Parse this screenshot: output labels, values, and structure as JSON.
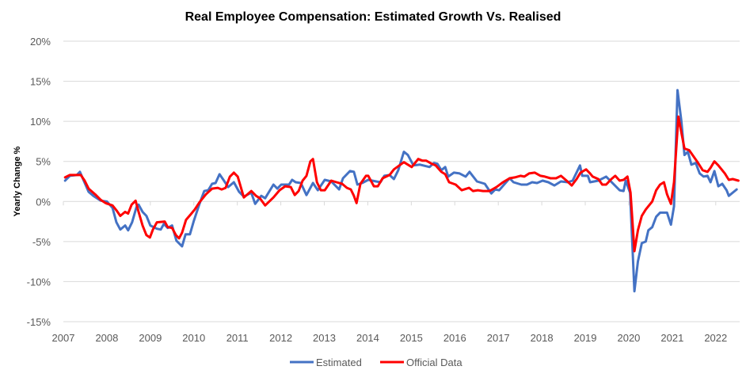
{
  "chart_data": {
    "type": "line",
    "title": "Real Employee Compensation: Estimated Growth Vs. Realised",
    "xlabel": "",
    "ylabel": "Yearly Change %",
    "xlim": [
      2007,
      2022.55
    ],
    "ylim": [
      -15,
      20
    ],
    "yticks": [
      20,
      15,
      10,
      5,
      0,
      -5,
      -10,
      -15
    ],
    "ytick_labels": [
      "20%",
      "15%",
      "10%",
      "5%",
      "0%",
      "-5%",
      "-10%",
      "-15%"
    ],
    "xticks": [
      2007,
      2008,
      2009,
      2010,
      2011,
      2012,
      2013,
      2014,
      2015,
      2016,
      2017,
      2018,
      2019,
      2020,
      2021,
      2022
    ],
    "xtick_labels": [
      "2007",
      "2008",
      "2009",
      "2010",
      "2011",
      "2012",
      "2013",
      "2014",
      "2015",
      "2016",
      "2017",
      "2018",
      "2019",
      "2020",
      "2021",
      "2022"
    ],
    "grid": "horizontal",
    "legend_position": "bottom",
    "series": [
      {
        "name": "Estimated",
        "color": "#4472C4",
        "points": [
          [
            2007.04,
            2.6
          ],
          [
            2007.15,
            3.2
          ],
          [
            2007.31,
            3.3
          ],
          [
            2007.38,
            3.7
          ],
          [
            2007.46,
            2.7
          ],
          [
            2007.58,
            1.2
          ],
          [
            2007.69,
            0.7
          ],
          [
            2007.86,
            0.1
          ],
          [
            2008.0,
            0
          ],
          [
            2008.13,
            -0.8
          ],
          [
            2008.22,
            -2.6
          ],
          [
            2008.31,
            -3.5
          ],
          [
            2008.42,
            -3.0
          ],
          [
            2008.49,
            -3.6
          ],
          [
            2008.58,
            -2.6
          ],
          [
            2008.68,
            -0.7
          ],
          [
            2008.73,
            -0.4
          ],
          [
            2008.82,
            -1.3
          ],
          [
            2008.91,
            -1.8
          ],
          [
            2009.0,
            -3.0
          ],
          [
            2009.15,
            -3.4
          ],
          [
            2009.24,
            -3.5
          ],
          [
            2009.31,
            -2.8
          ],
          [
            2009.4,
            -3.3
          ],
          [
            2009.5,
            -3.0
          ],
          [
            2009.6,
            -4.9
          ],
          [
            2009.73,
            -5.6
          ],
          [
            2009.81,
            -4.1
          ],
          [
            2009.91,
            -4.1
          ],
          [
            2010.0,
            -2.4
          ],
          [
            2010.13,
            -0.3
          ],
          [
            2010.24,
            1.3
          ],
          [
            2010.33,
            1.4
          ],
          [
            2010.42,
            2.2
          ],
          [
            2010.5,
            2.3
          ],
          [
            2010.59,
            3.4
          ],
          [
            2010.68,
            2.7
          ],
          [
            2010.79,
            1.8
          ],
          [
            2010.92,
            2.4
          ],
          [
            2011.04,
            1.2
          ],
          [
            2011.15,
            0.6
          ],
          [
            2011.32,
            1.1
          ],
          [
            2011.41,
            -0.3
          ],
          [
            2011.55,
            0.7
          ],
          [
            2011.64,
            0.4
          ],
          [
            2011.83,
            2.1
          ],
          [
            2011.92,
            1.6
          ],
          [
            2012.01,
            2.1
          ],
          [
            2012.19,
            2.1
          ],
          [
            2012.26,
            2.7
          ],
          [
            2012.34,
            2.4
          ],
          [
            2012.46,
            2.3
          ],
          [
            2012.59,
            0.8
          ],
          [
            2012.74,
            2.3
          ],
          [
            2012.85,
            1.4
          ],
          [
            2013.01,
            2.7
          ],
          [
            2013.16,
            2.5
          ],
          [
            2013.34,
            1.5
          ],
          [
            2013.43,
            2.9
          ],
          [
            2013.59,
            3.8
          ],
          [
            2013.68,
            3.7
          ],
          [
            2013.76,
            2.1
          ],
          [
            2013.87,
            2.3
          ],
          [
            2014.01,
            2.7
          ],
          [
            2014.19,
            2.5
          ],
          [
            2014.29,
            2.4
          ],
          [
            2014.38,
            3.2
          ],
          [
            2014.5,
            3.3
          ],
          [
            2014.6,
            2.8
          ],
          [
            2014.7,
            3.9
          ],
          [
            2014.83,
            6.2
          ],
          [
            2014.92,
            5.8
          ],
          [
            2015.05,
            4.5
          ],
          [
            2015.2,
            4.6
          ],
          [
            2015.42,
            4.3
          ],
          [
            2015.52,
            4.8
          ],
          [
            2015.6,
            4.7
          ],
          [
            2015.69,
            3.9
          ],
          [
            2015.78,
            4.3
          ],
          [
            2015.85,
            3.1
          ],
          [
            2015.98,
            3.6
          ],
          [
            2016.11,
            3.5
          ],
          [
            2016.25,
            3.1
          ],
          [
            2016.34,
            3.7
          ],
          [
            2016.51,
            2.5
          ],
          [
            2016.69,
            2.2
          ],
          [
            2016.84,
            1.0
          ],
          [
            2016.93,
            1.5
          ],
          [
            2017.02,
            1.4
          ],
          [
            2017.15,
            2.2
          ],
          [
            2017.26,
            2.9
          ],
          [
            2017.35,
            2.4
          ],
          [
            2017.53,
            2.1
          ],
          [
            2017.66,
            2.1
          ],
          [
            2017.78,
            2.4
          ],
          [
            2017.89,
            2.3
          ],
          [
            2018.02,
            2.6
          ],
          [
            2018.15,
            2.4
          ],
          [
            2018.29,
            2.0
          ],
          [
            2018.44,
            2.5
          ],
          [
            2018.6,
            2.4
          ],
          [
            2018.71,
            2.6
          ],
          [
            2018.88,
            4.5
          ],
          [
            2018.93,
            3.2
          ],
          [
            2019.06,
            3.2
          ],
          [
            2019.11,
            2.4
          ],
          [
            2019.3,
            2.6
          ],
          [
            2019.48,
            3.1
          ],
          [
            2019.79,
            1.4
          ],
          [
            2019.88,
            1.3
          ],
          [
            2019.93,
            2.6
          ],
          [
            2020.03,
            1.1
          ],
          [
            2020.13,
            -11.2
          ],
          [
            2020.21,
            -7.5
          ],
          [
            2020.3,
            -5.2
          ],
          [
            2020.39,
            -5.0
          ],
          [
            2020.45,
            -3.6
          ],
          [
            2020.54,
            -3.2
          ],
          [
            2020.63,
            -1.9
          ],
          [
            2020.72,
            -1.4
          ],
          [
            2020.88,
            -1.4
          ],
          [
            2020.97,
            -2.9
          ],
          [
            2021.04,
            -0.6
          ],
          [
            2021.12,
            13.9
          ],
          [
            2021.21,
            10.0
          ],
          [
            2021.28,
            5.8
          ],
          [
            2021.36,
            6.2
          ],
          [
            2021.44,
            4.6
          ],
          [
            2021.54,
            4.8
          ],
          [
            2021.63,
            3.5
          ],
          [
            2021.72,
            3.1
          ],
          [
            2021.81,
            3.2
          ],
          [
            2021.88,
            2.4
          ],
          [
            2021.97,
            3.8
          ],
          [
            2022.06,
            1.9
          ],
          [
            2022.15,
            2.2
          ],
          [
            2022.25,
            1.4
          ],
          [
            2022.3,
            0.7
          ],
          [
            2022.48,
            1.5
          ]
        ]
      },
      {
        "name": "Official Data",
        "color": "#FF0000",
        "points": [
          [
            2007.04,
            3.0
          ],
          [
            2007.15,
            3.3
          ],
          [
            2007.4,
            3.3
          ],
          [
            2007.49,
            2.6
          ],
          [
            2007.58,
            1.6
          ],
          [
            2007.73,
            0.9
          ],
          [
            2007.86,
            0.2
          ],
          [
            2007.97,
            -0.2
          ],
          [
            2008.13,
            -0.5
          ],
          [
            2008.22,
            -1.1
          ],
          [
            2008.31,
            -1.8
          ],
          [
            2008.42,
            -1.3
          ],
          [
            2008.49,
            -1.5
          ],
          [
            2008.57,
            -0.4
          ],
          [
            2008.66,
            0.1
          ],
          [
            2008.73,
            -1.3
          ],
          [
            2008.82,
            -3.0
          ],
          [
            2008.91,
            -4.2
          ],
          [
            2008.99,
            -4.5
          ],
          [
            2009.06,
            -3.5
          ],
          [
            2009.15,
            -2.6
          ],
          [
            2009.33,
            -2.5
          ],
          [
            2009.4,
            -3.2
          ],
          [
            2009.5,
            -3.3
          ],
          [
            2009.59,
            -4.2
          ],
          [
            2009.66,
            -4.6
          ],
          [
            2009.73,
            -3.9
          ],
          [
            2009.82,
            -2.3
          ],
          [
            2009.93,
            -1.6
          ],
          [
            2010.02,
            -1.0
          ],
          [
            2010.13,
            -0.1
          ],
          [
            2010.28,
            0.9
          ],
          [
            2010.42,
            1.6
          ],
          [
            2010.55,
            1.7
          ],
          [
            2010.64,
            1.5
          ],
          [
            2010.73,
            1.7
          ],
          [
            2010.83,
            3.1
          ],
          [
            2010.92,
            3.6
          ],
          [
            2011.01,
            3.1
          ],
          [
            2011.15,
            0.5
          ],
          [
            2011.32,
            1.3
          ],
          [
            2011.43,
            0.7
          ],
          [
            2011.52,
            0.4
          ],
          [
            2011.64,
            -0.5
          ],
          [
            2011.83,
            0.5
          ],
          [
            2011.97,
            1.4
          ],
          [
            2012.1,
            1.9
          ],
          [
            2012.23,
            1.8
          ],
          [
            2012.32,
            0.8
          ],
          [
            2012.41,
            1.3
          ],
          [
            2012.5,
            2.6
          ],
          [
            2012.59,
            3.2
          ],
          [
            2012.68,
            5.0
          ],
          [
            2012.74,
            5.3
          ],
          [
            2012.83,
            2.4
          ],
          [
            2012.92,
            1.4
          ],
          [
            2013.01,
            1.4
          ],
          [
            2013.16,
            2.6
          ],
          [
            2013.28,
            2.4
          ],
          [
            2013.41,
            2.2
          ],
          [
            2013.52,
            1.7
          ],
          [
            2013.61,
            1.5
          ],
          [
            2013.68,
            0.7
          ],
          [
            2013.74,
            -0.2
          ],
          [
            2013.83,
            2.2
          ],
          [
            2013.96,
            3.2
          ],
          [
            2014.01,
            3.2
          ],
          [
            2014.14,
            1.9
          ],
          [
            2014.23,
            1.9
          ],
          [
            2014.34,
            2.9
          ],
          [
            2014.5,
            3.3
          ],
          [
            2014.6,
            4.0
          ],
          [
            2014.7,
            4.4
          ],
          [
            2014.83,
            4.9
          ],
          [
            2014.92,
            4.6
          ],
          [
            2015.01,
            4.3
          ],
          [
            2015.16,
            5.3
          ],
          [
            2015.25,
            5.1
          ],
          [
            2015.34,
            5.1
          ],
          [
            2015.47,
            4.7
          ],
          [
            2015.56,
            4.5
          ],
          [
            2015.69,
            3.7
          ],
          [
            2015.78,
            3.4
          ],
          [
            2015.87,
            2.4
          ],
          [
            2016.02,
            2.1
          ],
          [
            2016.16,
            1.4
          ],
          [
            2016.33,
            1.7
          ],
          [
            2016.42,
            1.3
          ],
          [
            2016.53,
            1.4
          ],
          [
            2016.65,
            1.3
          ],
          [
            2016.8,
            1.3
          ],
          [
            2016.96,
            1.8
          ],
          [
            2017.11,
            2.4
          ],
          [
            2017.26,
            2.9
          ],
          [
            2017.38,
            3.0
          ],
          [
            2017.51,
            3.2
          ],
          [
            2017.6,
            3.1
          ],
          [
            2017.71,
            3.5
          ],
          [
            2017.84,
            3.6
          ],
          [
            2017.97,
            3.2
          ],
          [
            2018.07,
            3.1
          ],
          [
            2018.2,
            2.9
          ],
          [
            2018.33,
            2.9
          ],
          [
            2018.44,
            3.2
          ],
          [
            2018.57,
            2.6
          ],
          [
            2018.69,
            2.0
          ],
          [
            2018.8,
            2.8
          ],
          [
            2018.89,
            3.6
          ],
          [
            2019.02,
            4.0
          ],
          [
            2019.11,
            3.5
          ],
          [
            2019.17,
            3.1
          ],
          [
            2019.3,
            2.8
          ],
          [
            2019.39,
            2.1
          ],
          [
            2019.48,
            2.1
          ],
          [
            2019.6,
            2.8
          ],
          [
            2019.69,
            3.2
          ],
          [
            2019.79,
            2.6
          ],
          [
            2019.88,
            2.7
          ],
          [
            2019.97,
            3.1
          ],
          [
            2020.04,
            1.1
          ],
          [
            2020.13,
            -6.2
          ],
          [
            2020.21,
            -3.6
          ],
          [
            2020.3,
            -1.8
          ],
          [
            2020.39,
            -1.0
          ],
          [
            2020.54,
            0.0
          ],
          [
            2020.63,
            1.4
          ],
          [
            2020.72,
            2.1
          ],
          [
            2020.81,
            2.4
          ],
          [
            2020.88,
            0.9
          ],
          [
            2020.97,
            -0.3
          ],
          [
            2021.04,
            2.4
          ],
          [
            2021.14,
            10.6
          ],
          [
            2021.21,
            8.6
          ],
          [
            2021.28,
            6.6
          ],
          [
            2021.39,
            6.4
          ],
          [
            2021.48,
            5.7
          ],
          [
            2021.57,
            5.0
          ],
          [
            2021.7,
            3.9
          ],
          [
            2021.81,
            3.7
          ],
          [
            2021.88,
            4.2
          ],
          [
            2021.97,
            5.0
          ],
          [
            2022.06,
            4.5
          ],
          [
            2022.21,
            3.5
          ],
          [
            2022.3,
            2.7
          ],
          [
            2022.39,
            2.8
          ],
          [
            2022.52,
            2.6
          ]
        ]
      }
    ]
  }
}
